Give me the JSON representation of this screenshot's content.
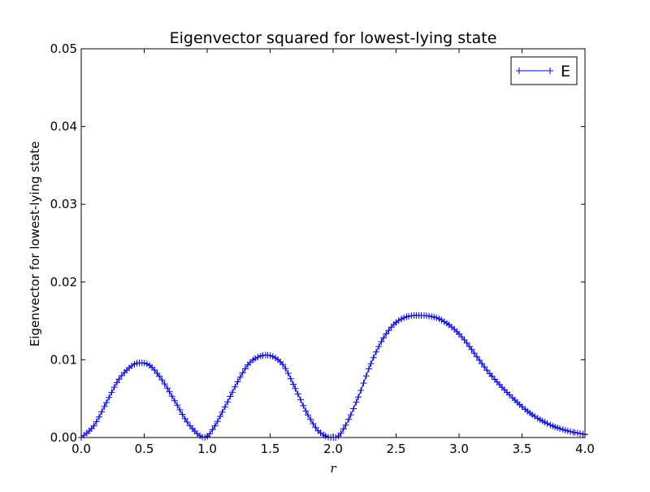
{
  "chart_data": {
    "type": "line",
    "title": "Eigenvector squared for lowest-lying state",
    "xlabel": "r",
    "ylabel": "Eigenvector for lowest-lying state",
    "xlim": [
      0.0,
      4.0
    ],
    "ylim": [
      0.0,
      0.05
    ],
    "xticks": [
      "0.0",
      "0.5",
      "1.0",
      "1.5",
      "2.0",
      "2.5",
      "3.0",
      "3.5",
      "4.0"
    ],
    "yticks": [
      "0.00",
      "0.01",
      "0.02",
      "0.03",
      "0.04",
      "0.05"
    ],
    "grid": false,
    "legend_position": "top-right",
    "series": [
      {
        "name": "E",
        "color": "#0000ff",
        "marker": "+",
        "x": [
          0.0,
          0.1,
          0.2,
          0.3,
          0.4,
          0.47,
          0.55,
          0.65,
          0.75,
          0.85,
          0.97,
          1.05,
          1.15,
          1.25,
          1.35,
          1.48,
          1.6,
          1.7,
          1.8,
          1.9,
          2.02,
          2.1,
          2.2,
          2.3,
          2.4,
          2.5,
          2.6,
          2.7,
          2.77,
          2.85,
          2.95,
          3.05,
          3.15,
          3.25,
          3.4,
          3.55,
          3.7,
          3.85,
          4.0
        ],
        "y": [
          0.0,
          0.0015,
          0.0045,
          0.0075,
          0.0092,
          0.0096,
          0.0092,
          0.0072,
          0.0045,
          0.0018,
          0.0,
          0.0012,
          0.0042,
          0.0074,
          0.0098,
          0.0106,
          0.0094,
          0.0063,
          0.0029,
          0.0006,
          0.0,
          0.0016,
          0.0052,
          0.0095,
          0.0128,
          0.0148,
          0.0156,
          0.0157,
          0.0156,
          0.0152,
          0.0141,
          0.0124,
          0.0102,
          0.0081,
          0.0055,
          0.0033,
          0.0018,
          0.0009,
          0.0004
        ]
      }
    ]
  }
}
